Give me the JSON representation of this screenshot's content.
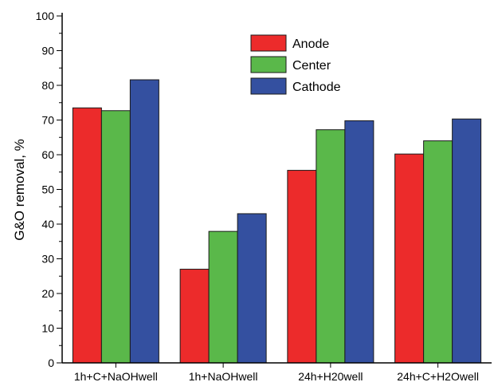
{
  "chart_data": {
    "type": "bar",
    "categories": [
      "1h+C+NaOHwell",
      "1h+NaOHwell",
      "24h+H20well",
      "24h+C+H2Owell"
    ],
    "series": [
      {
        "name": "Anode",
        "color": "#ec2b2b",
        "values": [
          73.5,
          27.0,
          55.5,
          60.2
        ]
      },
      {
        "name": "Center",
        "color": "#5ab84a",
        "values": [
          72.7,
          37.9,
          67.2,
          64.0
        ]
      },
      {
        "name": "Cathode",
        "color": "#3450a0",
        "values": [
          81.6,
          43.0,
          69.8,
          70.3
        ]
      }
    ],
    "title": "",
    "xlabel": "",
    "ylabel": "G&O removal, %",
    "ylim": [
      0,
      100
    ],
    "yticks": [
      "0",
      "10",
      "20",
      "30",
      "40",
      "50",
      "60",
      "70",
      "80",
      "90",
      "100"
    ],
    "grid": false,
    "legend_position": "top-right"
  }
}
